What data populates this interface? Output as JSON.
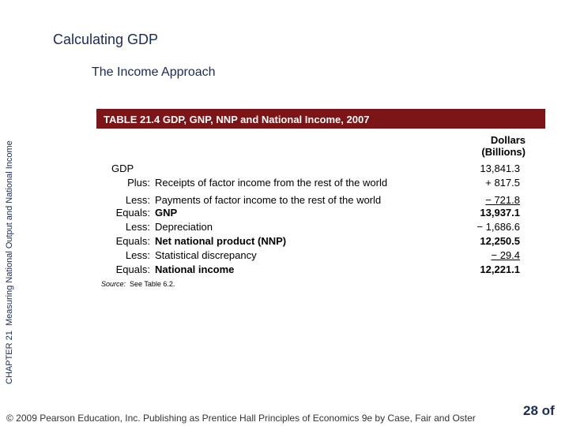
{
  "header": {
    "title": "Calculating GDP",
    "subtitle": "The Income Approach"
  },
  "sidebar": {
    "chapter": "CHAPTER 21",
    "text": "Measuring National Output and National Income"
  },
  "table": {
    "title": "TABLE 21.4  GDP, GNP, NNP and National Income, 2007",
    "unit_header": [
      "Dollars",
      "(Billions)"
    ],
    "rows": [
      {
        "item": "GDP",
        "value": "13,841.3"
      },
      {
        "op": "Plus:",
        "item": "Receipts of factor income from the rest of the world",
        "value": "+ 817.5"
      },
      {
        "op": "Less:",
        "item": "Payments of factor income to the rest of the world",
        "value": "− 721.8",
        "underline": true
      },
      {
        "op": "Equals:",
        "item": "GNP",
        "value": "13,937.1",
        "bold": true
      },
      {
        "op": "Less:",
        "item": "Depreciation",
        "value": "− 1,686.6"
      },
      {
        "op": "Equals:",
        "item": "Net national product (NNP)",
        "value": "12,250.5",
        "bold": true
      },
      {
        "op": "Less:",
        "item": "Statistical discrepancy",
        "value": "− 29.4",
        "underline": true
      },
      {
        "op": "Equals:",
        "item": "National income",
        "value": "12,221.1",
        "bold": true
      }
    ],
    "source_label": "Source:",
    "source": "See Table 6.2."
  },
  "footer": {
    "copyright": "© 2009 Pearson Education, Inc. Publishing as Prentice Hall  Principles of Economics 9e by Case, Fair and Oster",
    "page": "28 of"
  }
}
